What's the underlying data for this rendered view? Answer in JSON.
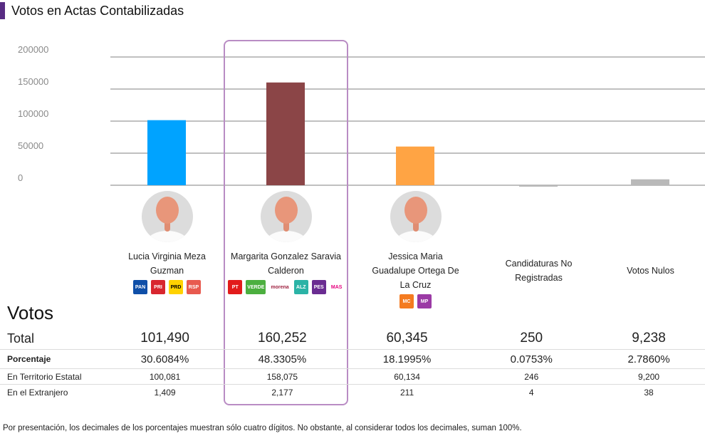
{
  "header": {
    "title": "Votos en Actas Contabilizadas",
    "accent_color": "#582c83"
  },
  "chart_data": {
    "type": "bar",
    "title": "Votos en Actas Contabilizadas",
    "xlabel": "",
    "ylabel": "",
    "ylim": [
      0,
      200000
    ],
    "yticks": [
      "200000",
      "150000",
      "100000",
      "50000",
      "0"
    ],
    "ytick_values": [
      200000,
      150000,
      100000,
      50000,
      0
    ],
    "grid": true,
    "categories": [
      "Lucia Virginia Meza Guzman",
      "Margarita Gonzalez Saravia Calderon",
      "Jessica Maria Guadalupe Ortega De La Cruz",
      "Candidaturas No Registradas",
      "Votos Nulos"
    ],
    "values": [
      101490,
      160252,
      60345,
      250,
      9238
    ],
    "colors": [
      "#00a3ff",
      "#8b4547",
      "#ffa444",
      "#b9b9b9",
      "#b9b9b9"
    ],
    "highlighted_index": 1
  },
  "candidates": [
    {
      "name": "Lucia Virginia Meza Guzman",
      "has_avatar": true,
      "parties": [
        {
          "name": "PAN",
          "label": "PAN",
          "bg": "#0f4fa8"
        },
        {
          "name": "PRI",
          "label": "PRI",
          "bg": "#d8262f"
        },
        {
          "name": "PRD",
          "label": "PRD",
          "bg": "#ffd200"
        },
        {
          "name": "RSP",
          "label": "RSP",
          "bg": "#e85a4f"
        }
      ]
    },
    {
      "name": "Margarita Gonzalez Saravia Calderon",
      "has_avatar": true,
      "parties": [
        {
          "name": "PT",
          "label": "PT",
          "bg": "#e21b1b"
        },
        {
          "name": "VERDE",
          "label": "VERDE",
          "bg": "#4caf3f"
        },
        {
          "name": "morena",
          "label": "morena",
          "bg": "#ffffff"
        },
        {
          "name": "alianza",
          "label": "ALZ",
          "bg": "#2bb3a6"
        },
        {
          "name": "PES",
          "label": "PES",
          "bg": "#6a2c91"
        },
        {
          "name": "MAS",
          "label": "MAS",
          "bg": "#ffffff"
        }
      ]
    },
    {
      "name": "Jessica Maria Guadalupe Ortega De La Cruz",
      "has_avatar": true,
      "parties": [
        {
          "name": "Movimiento Ciudadano",
          "label": "MC",
          "bg": "#f47b20"
        },
        {
          "name": "Morelos Progresa",
          "label": "MP",
          "bg": "#9b3aa5"
        }
      ]
    },
    {
      "name": "Candidaturas No Registradas",
      "has_avatar": false,
      "parties": []
    },
    {
      "name": "Votos Nulos",
      "has_avatar": false,
      "parties": []
    }
  ],
  "votos": {
    "title": "Votos",
    "rows": [
      {
        "label": "Total",
        "values": [
          "101,490",
          "160,252",
          "60,345",
          "250",
          "9,238"
        ]
      },
      {
        "label": "Porcentaje",
        "values": [
          "30.6084%",
          "48.3305%",
          "18.1995%",
          "0.0753%",
          "2.7860%"
        ]
      },
      {
        "label": "En Territorio Estatal",
        "values": [
          "100,081",
          "158,075",
          "60,134",
          "246",
          "9,200"
        ]
      },
      {
        "label": "En el Extranjero",
        "values": [
          "1,409",
          "2,177",
          "211",
          "4",
          "38"
        ]
      }
    ]
  },
  "footnote": "Por presentación, los decimales de los porcentajes muestran sólo cuatro dígitos. No obstante, al considerar todos los decimales, suman 100%."
}
